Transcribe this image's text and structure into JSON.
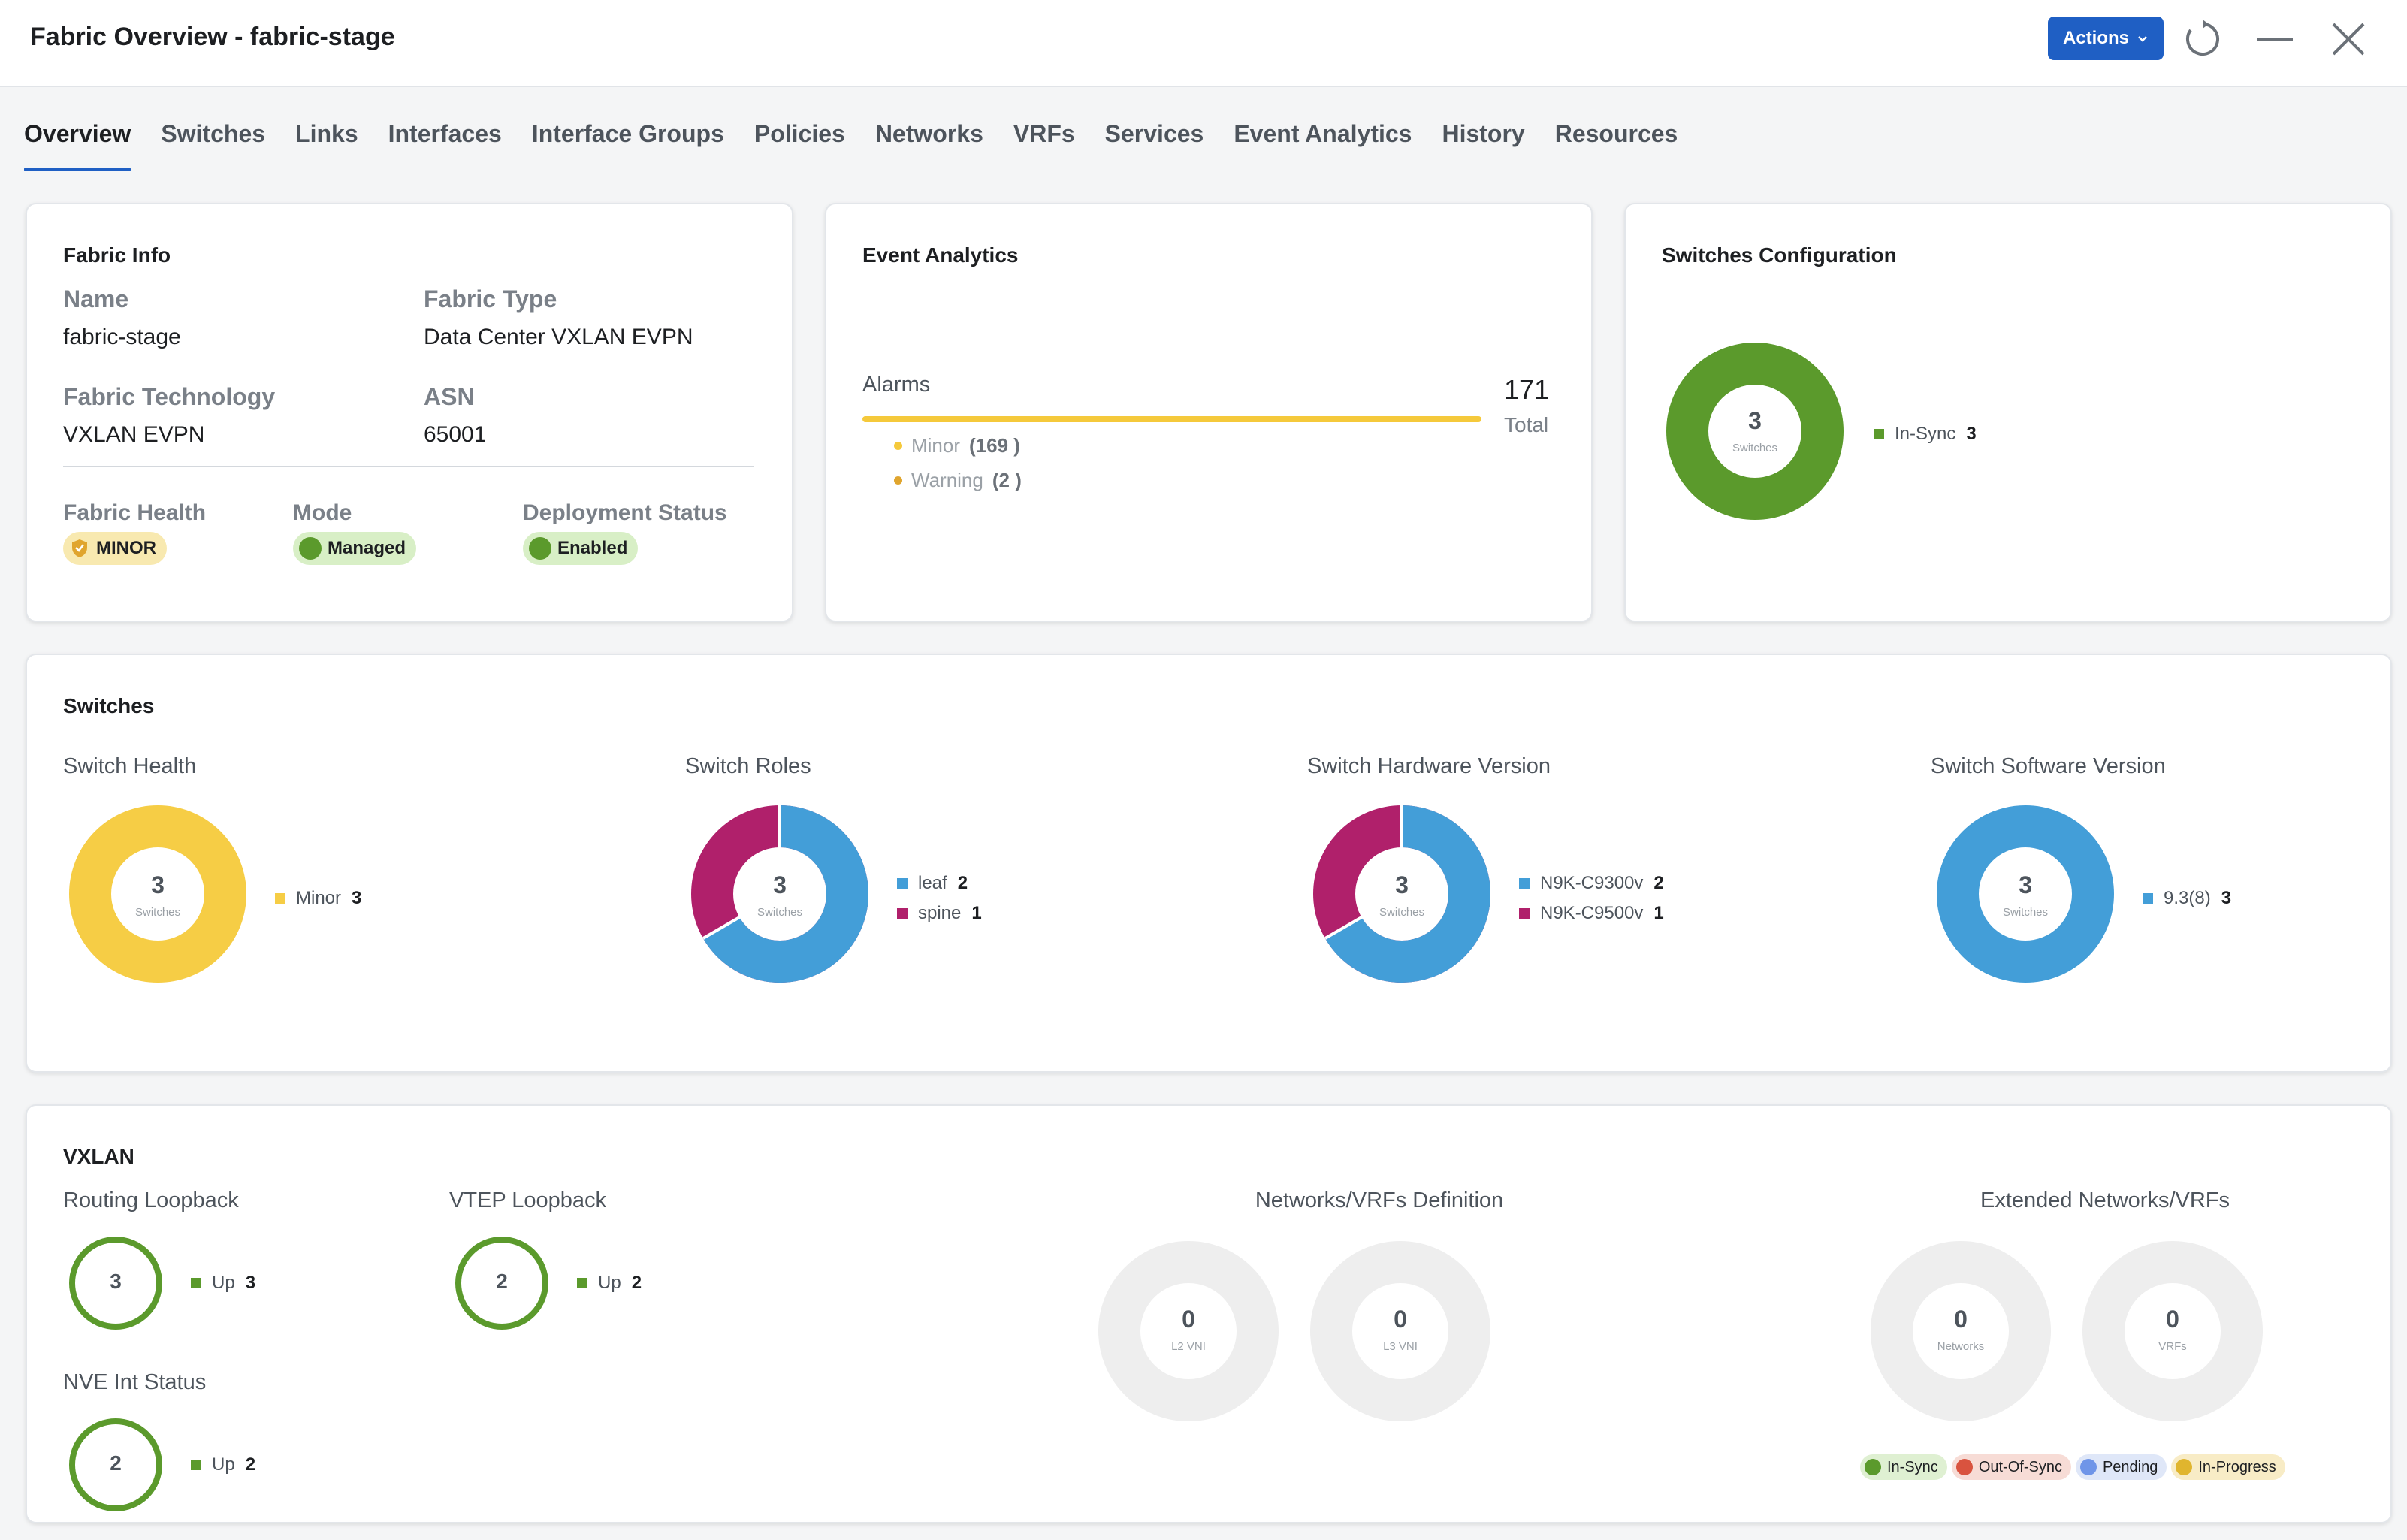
{
  "header": {
    "title": "Fabric Overview - fabric-stage",
    "actions_label": "Actions",
    "icons": [
      "chevron-down-icon",
      "refresh-icon",
      "minimize-icon",
      "close-icon"
    ]
  },
  "tabs": [
    "Overview",
    "Switches",
    "Links",
    "Interfaces",
    "Interface Groups",
    "Policies",
    "Networks",
    "VRFs",
    "Services",
    "Event Analytics",
    "History",
    "Resources"
  ],
  "fabric_info": {
    "title": "Fabric Info",
    "name_label": "Name",
    "name_value": "fabric-stage",
    "type_label": "Fabric Type",
    "type_value": "Data Center VXLAN EVPN",
    "tech_label": "Fabric Technology",
    "tech_value": "VXLAN EVPN",
    "asn_label": "ASN",
    "asn_value": "65001",
    "health_label": "Fabric Health",
    "health_value": "MINOR",
    "mode_label": "Mode",
    "mode_value": "Managed",
    "deploy_label": "Deployment Status",
    "deploy_value": "Enabled"
  },
  "event_analytics": {
    "title": "Event Analytics",
    "alarms_label": "Alarms",
    "total": "171",
    "total_label": "Total",
    "minor_label": "Minor",
    "minor_count": "(169 )",
    "warning_label": "Warning",
    "warning_count": "(2 )",
    "colors": {
      "minor": "#f5c93b",
      "warning": "#e0a52e"
    }
  },
  "switches_config": {
    "title": "Switches Configuration",
    "count": "3",
    "unit": "Switches",
    "legend_label": "In-Sync",
    "legend_count": "3",
    "color": "#5b9a2c"
  },
  "switches": {
    "title": "Switches",
    "health": {
      "title": "Switch Health",
      "count": "3",
      "unit": "Switches",
      "items": [
        {
          "label": "Minor",
          "count": "3",
          "color": "#f6cd45"
        }
      ]
    },
    "roles": {
      "title": "Switch Roles",
      "count": "3",
      "unit": "Switches",
      "items": [
        {
          "label": "leaf",
          "count": "2",
          "color": "#439ed8"
        },
        {
          "label": "spine",
          "count": "1",
          "color": "#b0206b"
        }
      ]
    },
    "hardware": {
      "title": "Switch Hardware Version",
      "count": "3",
      "unit": "Switches",
      "items": [
        {
          "label": "N9K-C9300v",
          "count": "2",
          "color": "#439ed8"
        },
        {
          "label": "N9K-C9500v",
          "count": "1",
          "color": "#b0206b"
        }
      ]
    },
    "software": {
      "title": "Switch Software Version",
      "count": "3",
      "unit": "Switches",
      "items": [
        {
          "label": "9.3(8)",
          "count": "3",
          "color": "#439ed8"
        }
      ]
    }
  },
  "vxlan": {
    "title": "VXLAN",
    "routing_loopback": {
      "title": "Routing Loopback",
      "count": "3",
      "legend_label": "Up",
      "legend_count": "3"
    },
    "vtep_loopback": {
      "title": "VTEP Loopback",
      "count": "2",
      "legend_label": "Up",
      "legend_count": "2"
    },
    "nve_status": {
      "title": "NVE Int Status",
      "count": "2",
      "legend_label": "Up",
      "legend_count": "2"
    },
    "networks_vrfs": {
      "title": "Networks/VRFs Definition",
      "l2": {
        "count": "0",
        "unit": "L2 VNI"
      },
      "l3": {
        "count": "0",
        "unit": "L3 VNI"
      }
    },
    "extended": {
      "title": "Extended Networks/VRFs",
      "networks": {
        "count": "0",
        "unit": "Networks"
      },
      "vrfs": {
        "count": "0",
        "unit": "VRFs"
      }
    },
    "status_pills": [
      {
        "label": "In-Sync",
        "color": "#5b9a2c",
        "bg": "#dff0d2"
      },
      {
        "label": "Out-Of-Sync",
        "color": "#d9533f",
        "bg": "#f7dcd6"
      },
      {
        "label": "Pending",
        "color": "#6f95e8",
        "bg": "#dfe7f8"
      },
      {
        "label": "In-Progress",
        "color": "#e0b52e",
        "bg": "#f8ecc6"
      }
    ]
  }
}
